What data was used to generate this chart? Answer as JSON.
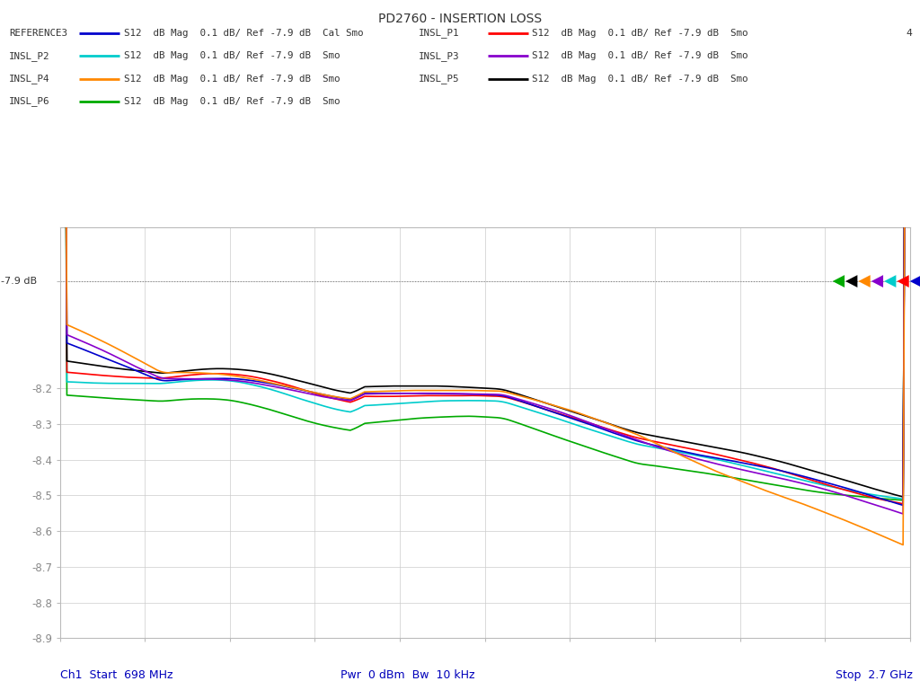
{
  "title": "PD2760 - INSERTION LOSS",
  "title_fontsize": 10,
  "xstart_ghz": 0.698,
  "xstop_ghz": 2.7,
  "ymin": -8.9,
  "ymax": -7.75,
  "ref_level": -7.9,
  "bottom_left": "Ch1  Start  698 MHz",
  "bottom_center": "Pwr  0 dBm  Bw  10 kHz",
  "bottom_right": "Stop  2.7 GHz",
  "legend": [
    {
      "name": "REFERENCE3",
      "color": "#0000cc",
      "desc": "S12  dB Mag  0.1 dB/ Ref -7.9 dB  Cal Smo",
      "side": "left"
    },
    {
      "name": "INSL_P1",
      "color": "#ff0000",
      "desc": "S12  dB Mag  0.1 dB/ Ref -7.9 dB  Smo",
      "side": "right"
    },
    {
      "name": "INSL_P2",
      "color": "#00cccc",
      "desc": "S12  dB Mag  0.1 dB/ Ref -7.9 dB  Smo",
      "side": "left"
    },
    {
      "name": "INSL_P3",
      "color": "#8800cc",
      "desc": "S12  dB Mag  0.1 dB/ Ref -7.9 dB  Smo",
      "side": "right"
    },
    {
      "name": "INSL_P4",
      "color": "#ff8800",
      "desc": "S12  dB Mag  0.1 dB/ Ref -7.9 dB  Smo",
      "side": "left"
    },
    {
      "name": "INSL_P5",
      "color": "#000000",
      "desc": "S12  dB Mag  0.1 dB/ Ref -7.9 dB  Smo",
      "side": "right"
    },
    {
      "name": "INSL_P6",
      "color": "#00aa00",
      "desc": "S12  dB Mag  0.1 dB/ Ref -7.9 dB  Smo",
      "side": "left"
    }
  ],
  "marker_colors": [
    "#0000cc",
    "#ff0000",
    "#00cccc",
    "#8800cc",
    "#ff8800",
    "#000000",
    "#00aa00"
  ],
  "bg_color": "#ffffff",
  "grid_color": "#cccccc",
  "text_color": "#888888"
}
